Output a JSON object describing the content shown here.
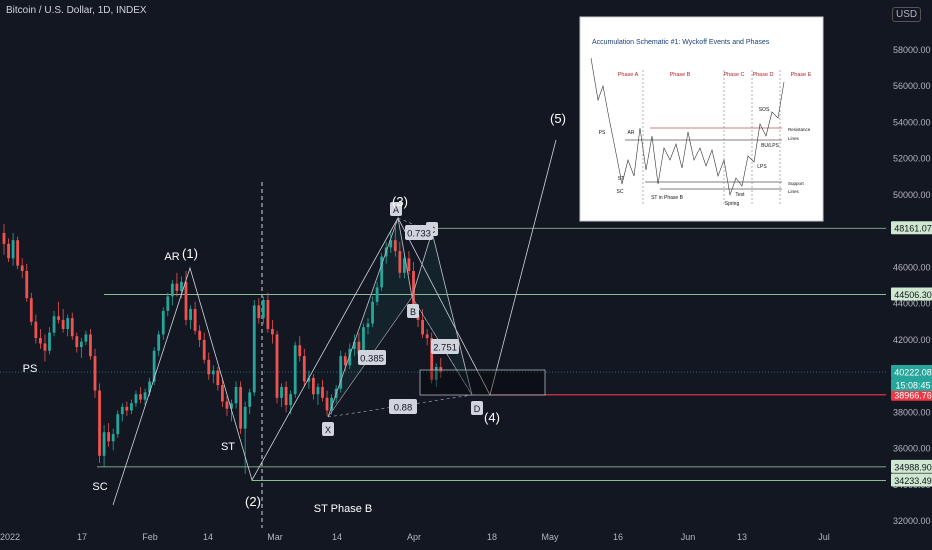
{
  "title": "Bitcoin / U.S. Dollar, 1D, INDEX",
  "currency_button": "USD",
  "colors": {
    "bg": "#131722",
    "up": "#26a69a",
    "down": "#ef5350",
    "line": "#d1d4dc",
    "green_line": "#9fd4a3",
    "red_line": "#f23645"
  },
  "chart_data": {
    "type": "candlestick",
    "y_ticks": [
      "58000.00",
      "56000.00",
      "54000.00",
      "52000.00",
      "50000.00",
      "48000.00",
      "46000.00",
      "44000.00",
      "42000.00",
      "40000.00",
      "38000.00",
      "36000.00",
      "34000.00",
      "32000.00"
    ],
    "x_ticks": [
      "2022",
      "17",
      "Feb",
      "14",
      "Mar",
      "14",
      "Apr",
      "18",
      "May",
      "16",
      "Jun",
      "13",
      "Jul"
    ],
    "ylim": [
      32000,
      59500
    ],
    "candles": [
      [
        47900,
        48400,
        46700,
        47300
      ],
      [
        47300,
        47600,
        46300,
        46500
      ],
      [
        46500,
        47900,
        46100,
        47500
      ],
      [
        47500,
        47700,
        45900,
        46100
      ],
      [
        46100,
        46500,
        45400,
        45800
      ],
      [
        45800,
        46200,
        44100,
        44300
      ],
      [
        44300,
        44600,
        42800,
        43000
      ],
      [
        43000,
        43400,
        41800,
        42100
      ],
      [
        42100,
        42600,
        41500,
        41800
      ],
      [
        41800,
        42300,
        40800,
        41400
      ],
      [
        41400,
        42700,
        41200,
        42400
      ],
      [
        42400,
        43600,
        42200,
        43300
      ],
      [
        43300,
        44100,
        42900,
        43100
      ],
      [
        43100,
        43700,
        42400,
        42600
      ],
      [
        42600,
        43400,
        42200,
        43200
      ],
      [
        43200,
        43500,
        42000,
        42200
      ],
      [
        42200,
        42400,
        41300,
        41600
      ],
      [
        41600,
        42100,
        41000,
        41900
      ],
      [
        41900,
        42500,
        41700,
        42300
      ],
      [
        42300,
        42600,
        40900,
        41100
      ],
      [
        41100,
        41500,
        38800,
        39200
      ],
      [
        39200,
        39600,
        35200,
        35600
      ],
      [
        35600,
        37300,
        35000,
        36900
      ],
      [
        36900,
        37400,
        36100,
        36400
      ],
      [
        36400,
        37100,
        35900,
        36800
      ],
      [
        36800,
        38100,
        36600,
        37900
      ],
      [
        37900,
        38500,
        37500,
        38300
      ],
      [
        38300,
        38600,
        37800,
        38100
      ],
      [
        38100,
        38700,
        37900,
        38500
      ],
      [
        38500,
        39200,
        38300,
        39000
      ],
      [
        39000,
        39400,
        38500,
        38700
      ],
      [
        38700,
        39300,
        38400,
        39100
      ],
      [
        39100,
        39900,
        38900,
        39700
      ],
      [
        39700,
        41600,
        39500,
        41400
      ],
      [
        41400,
        42500,
        41100,
        42300
      ],
      [
        42300,
        43800,
        42000,
        43600
      ],
      [
        43600,
        44600,
        43300,
        44400
      ],
      [
        44400,
        45300,
        43900,
        45100
      ],
      [
        45100,
        45700,
        44400,
        44700
      ],
      [
        44700,
        45500,
        44300,
        45200
      ],
      [
        45200,
        45800,
        42800,
        43100
      ],
      [
        43100,
        43900,
        42600,
        43700
      ],
      [
        43700,
        44100,
        42300,
        42500
      ],
      [
        42500,
        42800,
        41600,
        42000
      ],
      [
        42000,
        42400,
        40700,
        40900
      ],
      [
        40900,
        41300,
        39800,
        40100
      ],
      [
        40100,
        40600,
        39600,
        40300
      ],
      [
        40300,
        40500,
        39200,
        39500
      ],
      [
        39500,
        39800,
        38300,
        38600
      ],
      [
        38600,
        38900,
        37800,
        38200
      ],
      [
        38200,
        38700,
        37500,
        38500
      ],
      [
        38500,
        39700,
        38200,
        39400
      ],
      [
        39400,
        39700,
        36800,
        37100
      ],
      [
        37100,
        38600,
        34600,
        38300
      ],
      [
        38300,
        39300,
        37900,
        39100
      ],
      [
        39100,
        44200,
        38900,
        43900
      ],
      [
        43900,
        44300,
        42900,
        43200
      ],
      [
        43200,
        44400,
        42900,
        44200
      ],
      [
        44200,
        44600,
        42400,
        42600
      ],
      [
        42600,
        43100,
        41800,
        42300
      ],
      [
        42300,
        42500,
        38500,
        38800
      ],
      [
        38800,
        39600,
        38300,
        39400
      ],
      [
        39400,
        39700,
        38000,
        38400
      ],
      [
        38400,
        39200,
        37900,
        39000
      ],
      [
        39000,
        41900,
        38800,
        41700
      ],
      [
        41700,
        42200,
        40800,
        41100
      ],
      [
        41100,
        41500,
        39400,
        39700
      ],
      [
        39700,
        40300,
        39300,
        39900
      ],
      [
        39900,
        40100,
        38700,
        39000
      ],
      [
        39000,
        39600,
        38400,
        39400
      ],
      [
        39400,
        39800,
        38600,
        38800
      ],
      [
        38800,
        39200,
        37800,
        38100
      ],
      [
        38100,
        39000,
        37900,
        38800
      ],
      [
        38800,
        39500,
        38500,
        39300
      ],
      [
        39300,
        41400,
        39100,
        41100
      ],
      [
        41100,
        41300,
        40300,
        40600
      ],
      [
        40600,
        41800,
        40400,
        41500
      ],
      [
        41500,
        42300,
        41100,
        41900
      ],
      [
        41900,
        42400,
        40900,
        41200
      ],
      [
        41200,
        42900,
        41000,
        42700
      ],
      [
        42700,
        43200,
        42300,
        42900
      ],
      [
        42900,
        44400,
        42700,
        44100
      ],
      [
        44100,
        45200,
        43900,
        44900
      ],
      [
        44900,
        46800,
        44700,
        46600
      ],
      [
        46600,
        47400,
        46200,
        47100
      ],
      [
        47100,
        48000,
        46800,
        47500
      ],
      [
        47500,
        48200,
        46600,
        46900
      ],
      [
        46900,
        47400,
        45400,
        45700
      ],
      [
        45700,
        46800,
        45400,
        46500
      ],
      [
        46500,
        46900,
        45600,
        45800
      ],
      [
        45800,
        46300,
        43200,
        43400
      ],
      [
        43400,
        43800,
        42700,
        43100
      ],
      [
        43100,
        43700,
        42100,
        42300
      ],
      [
        42300,
        42600,
        41700,
        42100
      ],
      [
        42100,
        42400,
        39600,
        39800
      ],
      [
        39800,
        40700,
        39400,
        40500
      ],
      [
        40500,
        41000,
        39900,
        40222
      ]
    ],
    "horizontal_levels": [
      {
        "price": 48161.07,
        "label": "48161.07",
        "color": "#9fd4a3"
      },
      {
        "price": 44506.3,
        "label": "44506.30",
        "color": "#9fd4a3"
      },
      {
        "price": 40222.08,
        "label": "40222.08",
        "color": "#26a69a"
      },
      {
        "price": 38966.76,
        "label": "38966.76",
        "color": "#f23645"
      },
      {
        "price": 34988.9,
        "label": "34988.90",
        "color": "#9fd4a3"
      },
      {
        "price": 34233.49,
        "label": "34233.49",
        "color": "#9fd4a3"
      }
    ],
    "countdown": "15:08:45",
    "wyckoff_labels": [
      "PS",
      "SC",
      "AR",
      "ST",
      "ST Phase B"
    ],
    "wave_labels": [
      "(1)",
      "(2)",
      "(3)",
      "(4)",
      "(5)"
    ],
    "harmonic_points": [
      "X",
      "A",
      "B",
      "C",
      "D"
    ],
    "ratios": [
      "0.733",
      "0.385",
      "2.751",
      "0.88"
    ]
  },
  "inset": {
    "title": "Accumulation Schematic #1: Wyckoff Events and Phases",
    "phases": [
      "Phase A",
      "Phase B",
      "Phase C",
      "Phase D",
      "Phase E"
    ],
    "events": [
      "PS",
      "AR",
      "SC",
      "ST",
      "ST in Phase B",
      "Spring",
      "Test",
      "LPS",
      "SOS",
      "BU/LPS"
    ],
    "line_labels": [
      "Resistance",
      "Lines",
      "Support",
      "Lines"
    ]
  }
}
